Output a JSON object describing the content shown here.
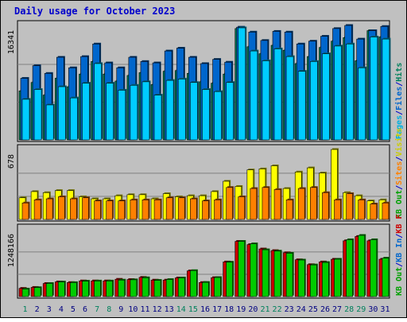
{
  "chart_data": {
    "type": "bar",
    "title": "Daily usage for October 2023",
    "categories": [
      "1",
      "2",
      "3",
      "4",
      "5",
      "6",
      "7",
      "8",
      "9",
      "10",
      "11",
      "12",
      "13",
      "14",
      "15",
      "16",
      "17",
      "18",
      "19",
      "20",
      "21",
      "22",
      "23",
      "24",
      "25",
      "26",
      "27",
      "28",
      "29",
      "30",
      "31"
    ],
    "weekend_categories": [
      "1",
      "7",
      "8",
      "14",
      "15",
      "21",
      "22",
      "28",
      "29"
    ],
    "panels": [
      {
        "id": "top",
        "ymax_label": "16341",
        "ymax": 16341,
        "side_legend": [
          {
            "text": "Hits",
            "color": "#00805c"
          },
          {
            "text": "/",
            "color": "#0000cc"
          },
          {
            "text": "Files",
            "color": "#0066cc"
          },
          {
            "text": "/",
            "color": "#0000cc"
          },
          {
            "text": "Pages",
            "color": "#00b0e0"
          }
        ],
        "series": [
          {
            "name": "Hits",
            "color": "#00805c",
            "values": [
              7000,
              8200,
              6400,
              8800,
              7600,
              9400,
              11200,
              9400,
              8400,
              9200,
              9600,
              7900,
              9800,
              9900,
              9500,
              8300,
              8100,
              9400,
              15900,
              13300,
              12300,
              13500,
              12800,
              10900,
              11900,
              13200,
              14100,
              14600,
              11300,
              15600,
              14700
            ]
          },
          {
            "name": "Files",
            "color": "#0066cc",
            "values": [
              8800,
              10600,
              9500,
              11800,
              10300,
              11900,
              13700,
              11000,
              10300,
              11800,
              11200,
              11000,
              12700,
              13100,
              11800,
              10900,
              11500,
              11100,
              16100,
              15400,
              14200,
              15500,
              15400,
              13700,
              14100,
              14800,
              15900,
              16341,
              14400,
              15600,
              16200
            ]
          },
          {
            "name": "Pages",
            "color": "#00ccff",
            "values": [
              5800,
              7200,
              5000,
              7600,
              6000,
              8100,
              10900,
              8100,
              7100,
              7800,
              8300,
              6400,
              8500,
              8700,
              8200,
              7200,
              6900,
              8200,
              16000,
              12700,
              11300,
              13000,
              11900,
              9800,
              11200,
              12300,
              13400,
              13700,
              10300,
              14700,
              14400
            ]
          }
        ]
      },
      {
        "id": "mid",
        "ymax_label": "678",
        "ymax": 678,
        "side_legend": [
          {
            "text": "Visits",
            "color": "#cccc00"
          },
          {
            "text": "/",
            "color": "#0000cc"
          },
          {
            "text": "Sites",
            "color": "#ff8000"
          },
          {
            "text": "/",
            "color": "#0000cc"
          },
          {
            "text": "KB Out",
            "color": "#00a000"
          }
        ],
        "series": [
          {
            "name": "Visits",
            "color": "#ffff00",
            "values": [
              210,
              270,
              260,
              280,
              280,
              220,
              200,
              200,
              230,
              240,
              240,
              200,
              250,
              220,
              230,
              230,
              270,
              370,
              320,
              480,
              490,
              520,
              300,
              460,
              500,
              450,
              678,
              260,
              230,
              180,
              190
            ]
          },
          {
            "name": "Sites",
            "color": "#ff8000",
            "values": [
              160,
              190,
              200,
              220,
              200,
              210,
              180,
              180,
              180,
              190,
              190,
              190,
              210,
              210,
              200,
              180,
              190,
              310,
              220,
              300,
              310,
              290,
              190,
              300,
              310,
              260,
              190,
              250,
              190,
              150,
              160
            ]
          },
          {
            "name": "KB Out",
            "color": "#00a000",
            "values": []
          }
        ]
      },
      {
        "id": "bottom",
        "ymax_label": "1248166",
        "ymax": 1248166,
        "side_legend": [
          {
            "text": "KB F",
            "color": "#cc0000"
          },
          {
            "text": "/",
            "color": "#0000cc"
          },
          {
            "text": "KB In",
            "color": "#0066cc"
          },
          {
            "text": "/",
            "color": "#0000cc"
          },
          {
            "text": "KB Out",
            "color": "#00a000"
          }
        ],
        "series": [
          {
            "name": "KB F",
            "color": "#cc0000",
            "values": [
              152000,
              170000,
              242000,
              272000,
              260000,
              290000,
              290000,
              290000,
              320000,
              315000,
              355000,
              305000,
              305000,
              345000,
              475000,
              260000,
              350000,
              640000,
              1020000,
              960000,
              880000,
              850000,
              810000,
              680000,
              590000,
              640000,
              690000,
              1030000,
              1110000,
              1030000,
              690000
            ]
          },
          {
            "name": "KB Out",
            "color": "#00cc00",
            "values": [
              140000,
              165000,
              242000,
              270000,
              258000,
              285000,
              288000,
              288000,
              305000,
              310000,
              348000,
              300000,
              315000,
              345000,
              480000,
              262000,
              352000,
              635000,
              1020000,
              975000,
              865000,
              840000,
              800000,
              675000,
              585000,
              630000,
              690000,
              1050000,
              1130000,
              1050000,
              710000
            ]
          }
        ]
      }
    ]
  }
}
